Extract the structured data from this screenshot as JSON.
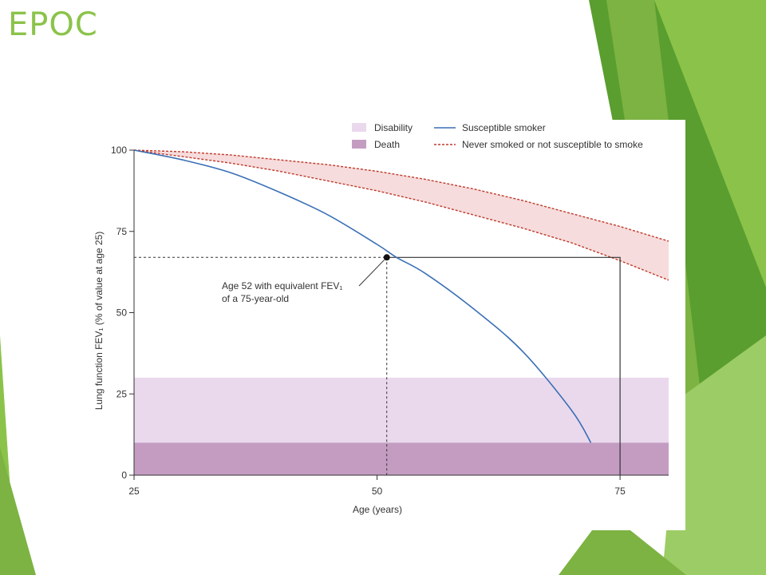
{
  "slide": {
    "title": "EPOC"
  },
  "colors": {
    "title": "#8bc34a",
    "green_dark": "#5a9e2f",
    "green_mid": "#7cb342",
    "green_light": "#9ccc65",
    "disability_band": "#ead9ec",
    "death_band": "#c49cc2",
    "susceptible_line": "#3a6fb5",
    "never_smoked_line": "#c0392b",
    "never_smoked_band": "#f6dcdc"
  },
  "chart_data": {
    "type": "line",
    "xlabel": "Age (years)",
    "ylabel": "Lung function FEV₁ (% of value at age 25)",
    "xlim": [
      25,
      80
    ],
    "ylim": [
      0,
      100
    ],
    "x_ticks": [
      "25",
      "50",
      "75"
    ],
    "y_ticks": [
      "0",
      "25",
      "50",
      "75",
      "100"
    ],
    "legend": {
      "position": "top-right",
      "items": [
        {
          "label": "Disability",
          "kind": "band"
        },
        {
          "label": "Death",
          "kind": "band"
        },
        {
          "label": "Susceptible smoker",
          "kind": "solid-line"
        },
        {
          "label": "Never smoked or not susceptible to smoke",
          "kind": "dashed-line"
        }
      ]
    },
    "bands": [
      {
        "name": "Disability",
        "y_range": [
          10,
          30
        ]
      },
      {
        "name": "Death",
        "y_range": [
          0,
          10
        ]
      }
    ],
    "series": [
      {
        "name": "Susceptible smoker",
        "style": "solid",
        "x": [
          25,
          30,
          35,
          40,
          45,
          50,
          52,
          55,
          60,
          65,
          70,
          72
        ],
        "y": [
          100,
          97,
          93,
          87,
          80,
          71,
          67,
          62,
          51,
          38,
          20,
          10
        ]
      },
      {
        "name": "Never smoked or not susceptible to smoke",
        "style": "dashed",
        "upper": {
          "x": [
            25,
            30,
            35,
            40,
            45,
            50,
            55,
            60,
            65,
            70,
            75,
            80
          ],
          "y": [
            100,
            99.5,
            98.5,
            97,
            95.5,
            93.5,
            91,
            88,
            84.5,
            80.5,
            76.5,
            72
          ]
        },
        "lower": {
          "x": [
            25,
            30,
            35,
            40,
            45,
            50,
            55,
            60,
            65,
            70,
            75,
            80
          ],
          "y": [
            100,
            98,
            96,
            93.5,
            90.5,
            87.5,
            84,
            80,
            76,
            71.5,
            66,
            60
          ]
        }
      }
    ],
    "annotation": {
      "line1": "Age 52 with equivalent FEV₁",
      "line2": "of a 75-year-old",
      "point": {
        "x": 51,
        "y": 67
      },
      "equivalent_age": 75
    }
  }
}
